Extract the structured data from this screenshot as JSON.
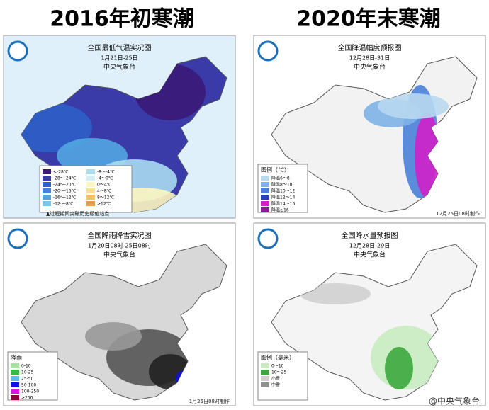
{
  "header": {
    "left": "2016年初寒潮",
    "right": "2020年末寒潮"
  },
  "panels": [
    {
      "title": "全国最低气温实况图",
      "date": "1月21日-25日",
      "agency": "中央气象台",
      "legend": {
        "items": [
          {
            "label": "<-28℃",
            "color": "#3b1a78"
          },
          {
            "label": "-28～-24℃",
            "color": "#3a3aa8"
          },
          {
            "label": "-24～-20℃",
            "color": "#2f5fc8"
          },
          {
            "label": "-20～-16℃",
            "color": "#3f86d6"
          },
          {
            "label": "-16～-12℃",
            "color": "#52a6e0"
          },
          {
            "label": "-12～-8℃",
            "color": "#7cc6ea"
          },
          {
            "label": "-8～-4℃",
            "color": "#a8dcf0"
          },
          {
            "label": "-4～0℃",
            "color": "#d4eef7"
          },
          {
            "label": "0～4℃",
            "color": "#fdf6c0"
          },
          {
            "label": "4～8℃",
            "color": "#fbe08a"
          },
          {
            "label": "8～12℃",
            "color": "#f5c060"
          },
          {
            "label": ">12℃",
            "color": "#ec9a40"
          }
        ]
      },
      "note": "▲过程期间突破历史极值站点"
    },
    {
      "title": "全国降温幅度预报图",
      "date": "12月28日-31日",
      "agency": "中央气象台",
      "legend": {
        "title": "图例（℃）",
        "items": [
          {
            "label": "降温6～8",
            "color": "#b8d8f0"
          },
          {
            "label": "降温8～10",
            "color": "#7fb3e6"
          },
          {
            "label": "降温10～12",
            "color": "#4a7fd8"
          },
          {
            "label": "降温12～14",
            "color": "#2a3fc0"
          },
          {
            "label": "降温14～16",
            "color": "#d020c8"
          },
          {
            "label": "降温≥16",
            "color": "#8a1a9a"
          }
        ]
      },
      "note": "12月25日08时制作"
    },
    {
      "title": "全国降雨降雪实况图",
      "date": "1月20日08时-25日08时",
      "agency": "中央气象台",
      "legend": {
        "title": "降雨",
        "items": [
          {
            "label": "0-10",
            "color": "#a6e3a0"
          },
          {
            "label": "10-25",
            "color": "#3dba3d"
          },
          {
            "label": "25-50",
            "color": "#5fb8f0"
          },
          {
            "label": "50-100",
            "color": "#1010e0"
          },
          {
            "label": "100-250",
            "color": "#e010e0"
          },
          {
            "label": ">250",
            "color": "#900040"
          }
        ]
      },
      "note": "1月25日08时制作"
    },
    {
      "title": "全国降水量预报图",
      "date": "12月28日-29日",
      "agency": "中央气象台",
      "legend": {
        "title": "图例（毫米）",
        "items": [
          {
            "label": "0～10",
            "color": "#c8ecc0"
          },
          {
            "label": "10～25",
            "color": "#3da83d"
          },
          {
            "label": "小雪",
            "color": "#d0d0d0"
          },
          {
            "label": "中雪",
            "color": "#909090"
          }
        ]
      },
      "note": "@中央气象台"
    }
  ]
}
